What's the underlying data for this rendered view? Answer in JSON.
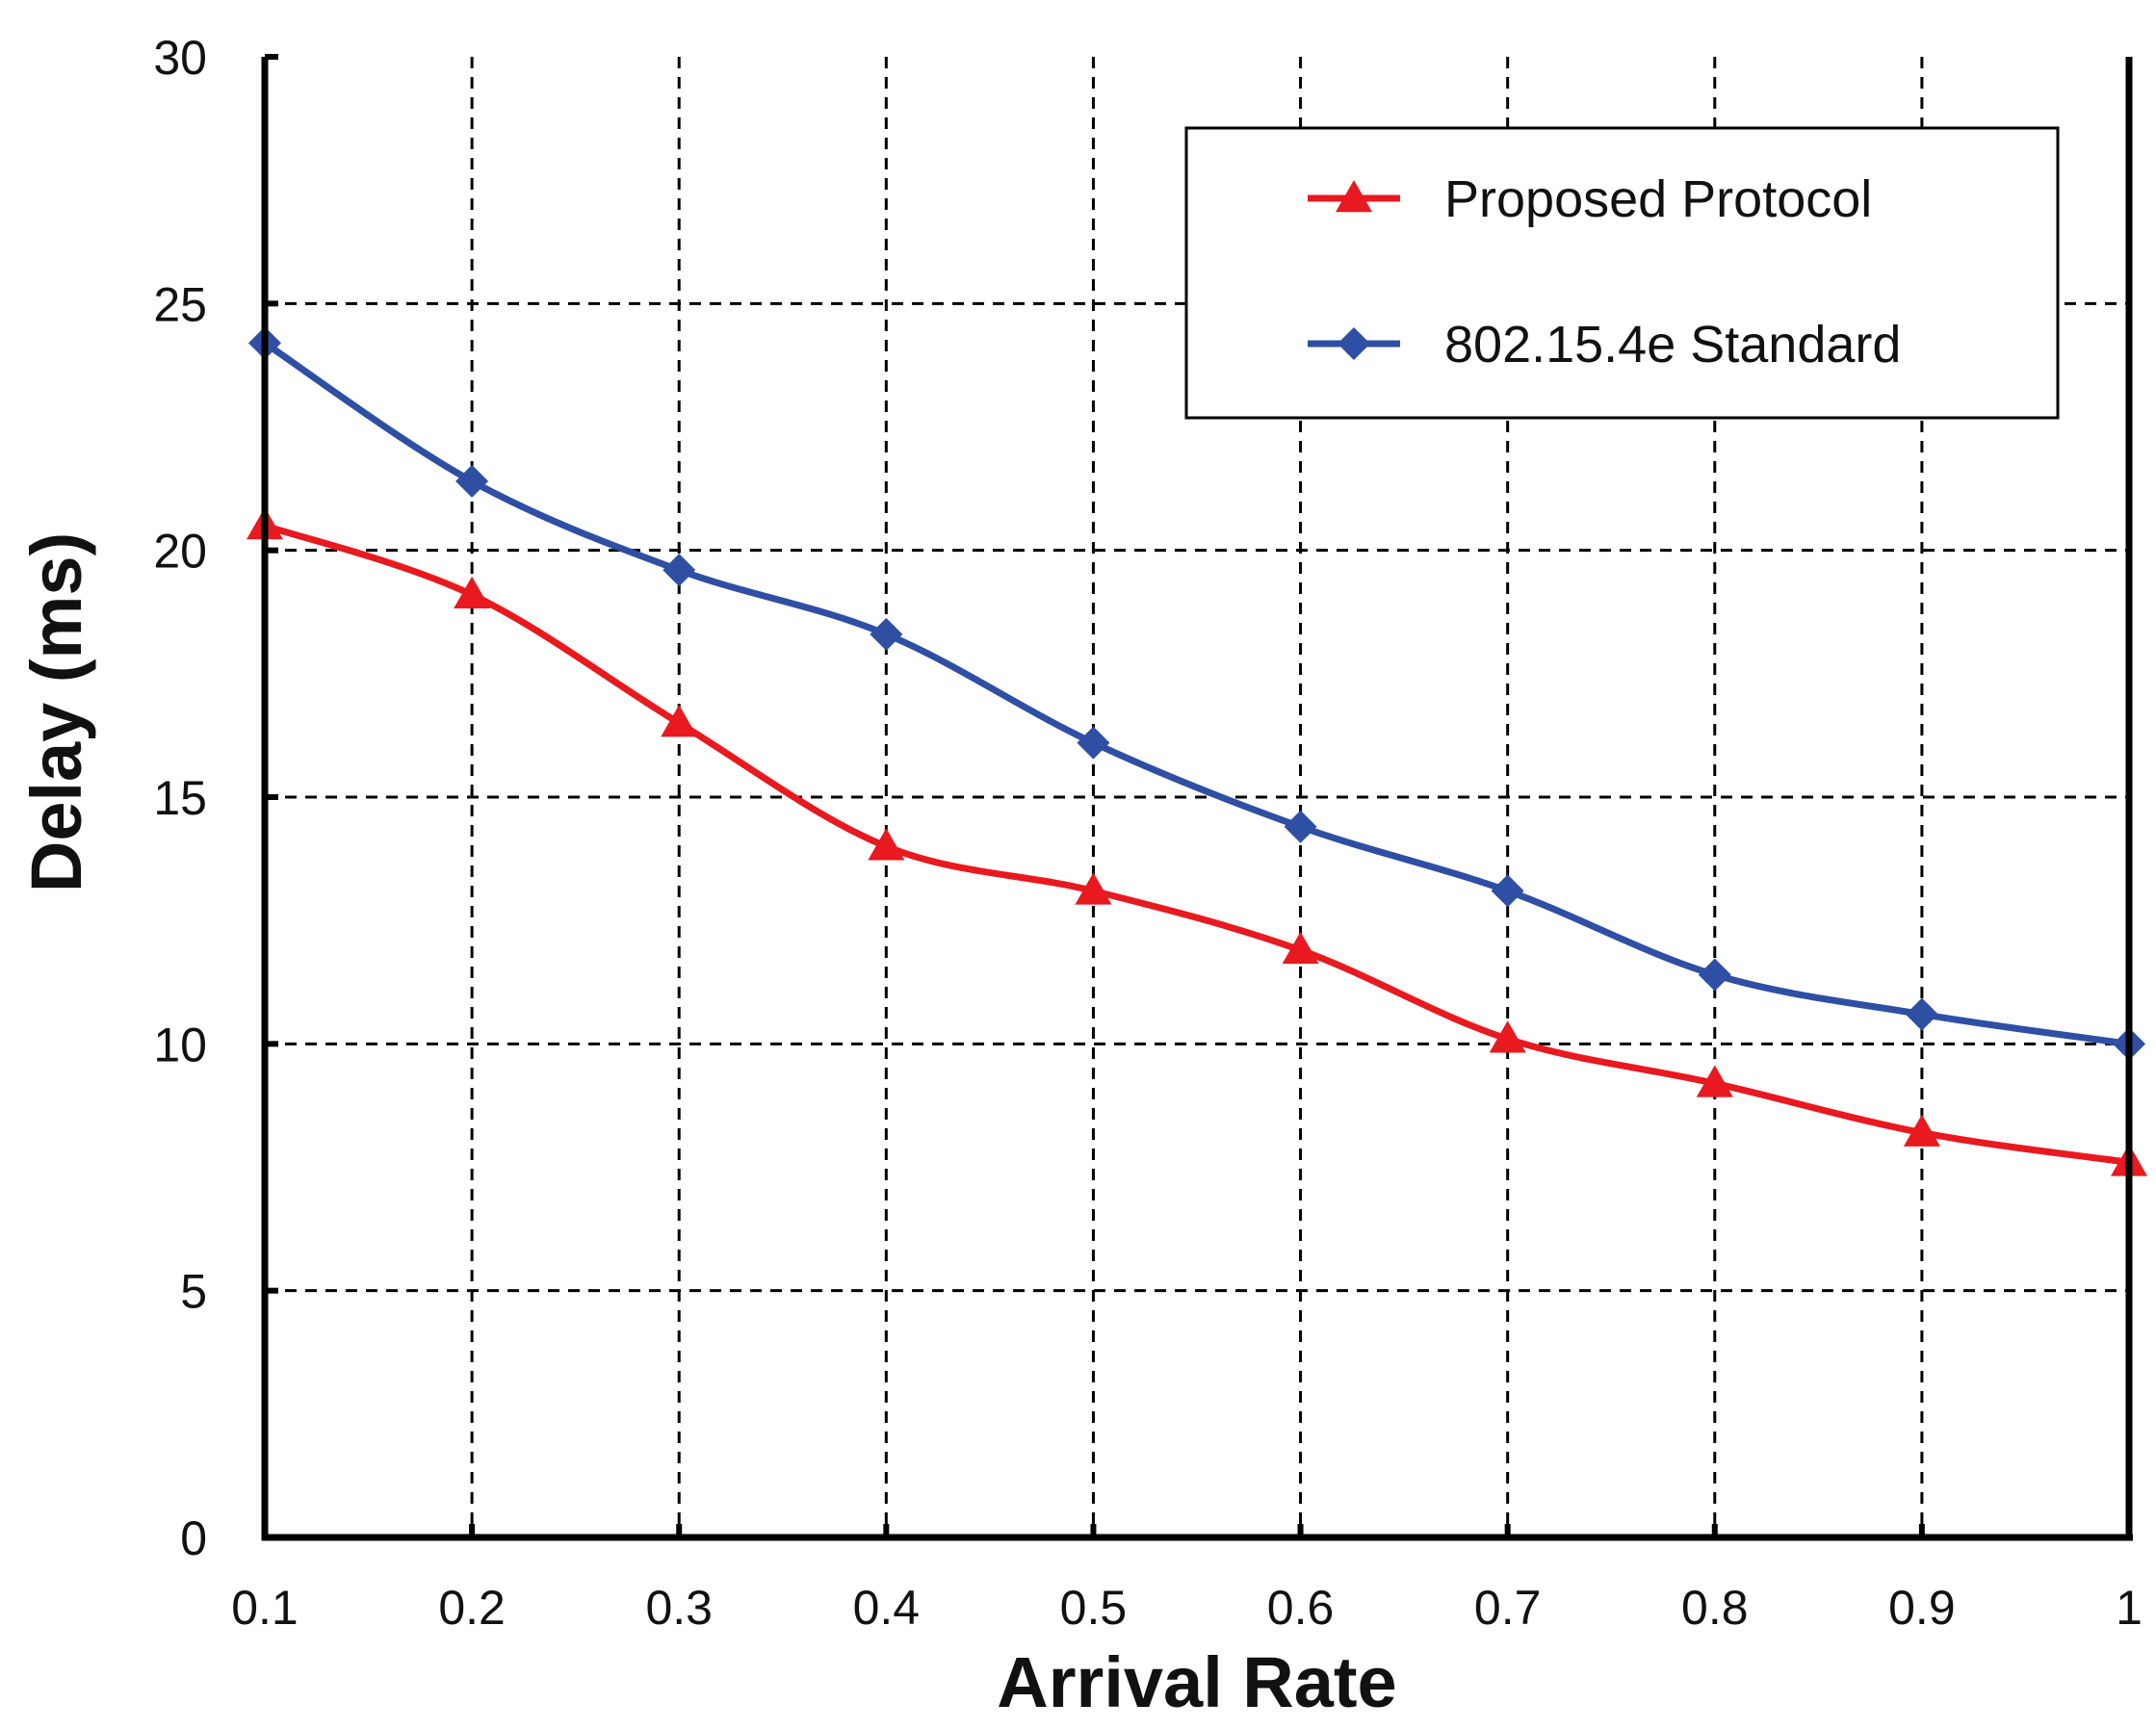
{
  "chart_data": {
    "type": "line",
    "title": "",
    "xlabel": "Arrival Rate",
    "ylabel": "Delay (ms)",
    "x": [
      0.1,
      0.2,
      0.3,
      0.4,
      0.5,
      0.6,
      0.7,
      0.8,
      0.9,
      1.0
    ],
    "x_tick_labels": [
      "0.1",
      "0.2",
      "0.3",
      "0.4",
      "0.5",
      "0.6",
      "0.7",
      "0.8",
      "0.9",
      "1"
    ],
    "y_tick_values": [
      0,
      5,
      10,
      15,
      20,
      25,
      30
    ],
    "y_tick_labels": [
      "0",
      "5",
      "10",
      "15",
      "20",
      "25",
      "30"
    ],
    "xlim": [
      0.1,
      1.0
    ],
    "ylim": [
      0,
      30
    ],
    "grid": true,
    "legend_position": "top-right",
    "series": [
      {
        "name": "Proposed Protocol",
        "color": "#e8191f",
        "marker": "triangle",
        "values": [
          20.5,
          19.1,
          16.5,
          14.0,
          13.1,
          11.9,
          10.1,
          9.2,
          8.2,
          7.6
        ]
      },
      {
        "name": "802.15.4e Standard",
        "color": "#2e4fa3",
        "marker": "diamond",
        "values": [
          24.2,
          21.4,
          19.6,
          18.3,
          16.1,
          14.4,
          13.1,
          11.4,
          10.6,
          10.0
        ]
      }
    ]
  }
}
